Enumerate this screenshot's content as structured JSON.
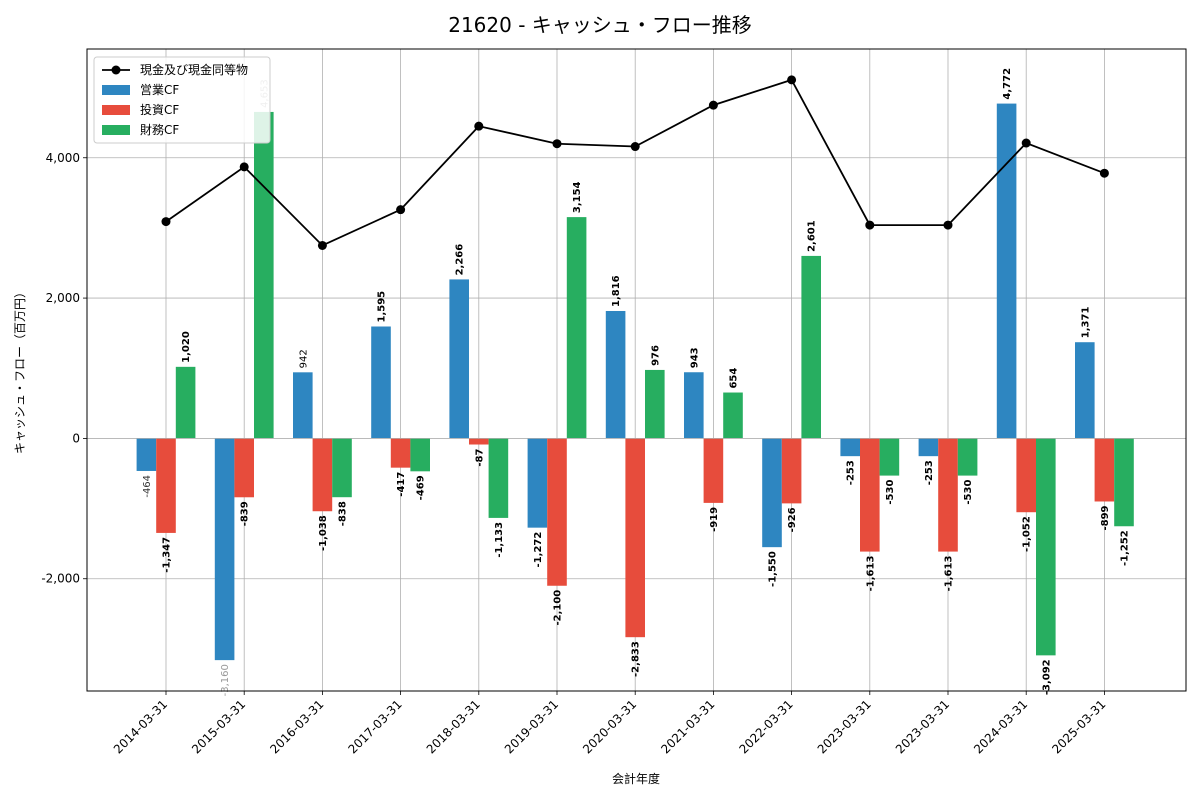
{
  "chart_data": {
    "type": "bar",
    "title": "21620 - キャッシュ・フロー推移",
    "xlabel": "会計年度",
    "ylabel": "キャッシュ・フロー（百万円）",
    "ylim": [
      -3600,
      5550
    ],
    "yticks": [
      -2000,
      0,
      2000,
      4000
    ],
    "ytick_labels": [
      "-2,000",
      "0",
      "2,000",
      "4,000"
    ],
    "grid": true,
    "legend_position": "top-left",
    "categories": [
      "2014-03-31",
      "2015-03-31",
      "2016-03-31",
      "2017-03-31",
      "2018-03-31",
      "2019-03-31",
      "2020-03-31",
      "2021-03-31",
      "2022-03-31",
      "2023-03-31",
      "2023-03-31",
      "2024-03-31",
      "2025-03-31"
    ],
    "series": [
      {
        "name": "営業CF",
        "kind": "bar",
        "color": "#2e86c1",
        "values": [
          -464,
          -3160,
          942,
          1595,
          2266,
          -1272,
          1816,
          943,
          -1550,
          -253,
          -253,
          4772,
          1371
        ],
        "labels": [
          "-464",
          "-3,160",
          "942",
          "1,595",
          "2,266",
          "-1,272",
          "1,816",
          "943",
          "-1,550",
          "-253",
          "-253",
          "4,772",
          "1,371"
        ]
      },
      {
        "name": "投資CF",
        "kind": "bar",
        "color": "#e74c3c",
        "values": [
          -1347,
          -839,
          -1038,
          -417,
          -87,
          -2100,
          -2833,
          -919,
          -926,
          -1613,
          -1613,
          -1052,
          -899
        ],
        "labels": [
          "-1,347",
          "-839",
          "-1,038",
          "-417",
          "-87",
          "-2,100",
          "-2,833",
          "-919",
          "-926",
          "-1,613",
          "-1,613",
          "-1,052",
          "-899"
        ]
      },
      {
        "name": "財務CF",
        "kind": "bar",
        "color": "#27ae60",
        "values": [
          1020,
          4653,
          -838,
          -469,
          -1133,
          3154,
          976,
          654,
          2601,
          -530,
          -530,
          -3092,
          -1252
        ],
        "labels": [
          "1,020",
          "4,653",
          "-838",
          "-469",
          "-1,133",
          "3,154",
          "976",
          "654",
          "2,601",
          "-530",
          "-530",
          "-3,092",
          "-1,252"
        ]
      },
      {
        "name": "現金及び現金同等物",
        "kind": "line",
        "color": "#000000",
        "values": [
          3090,
          3870,
          2750,
          3260,
          4450,
          4200,
          4160,
          4750,
          5110,
          3040,
          3040,
          4210,
          3780
        ]
      }
    ]
  }
}
